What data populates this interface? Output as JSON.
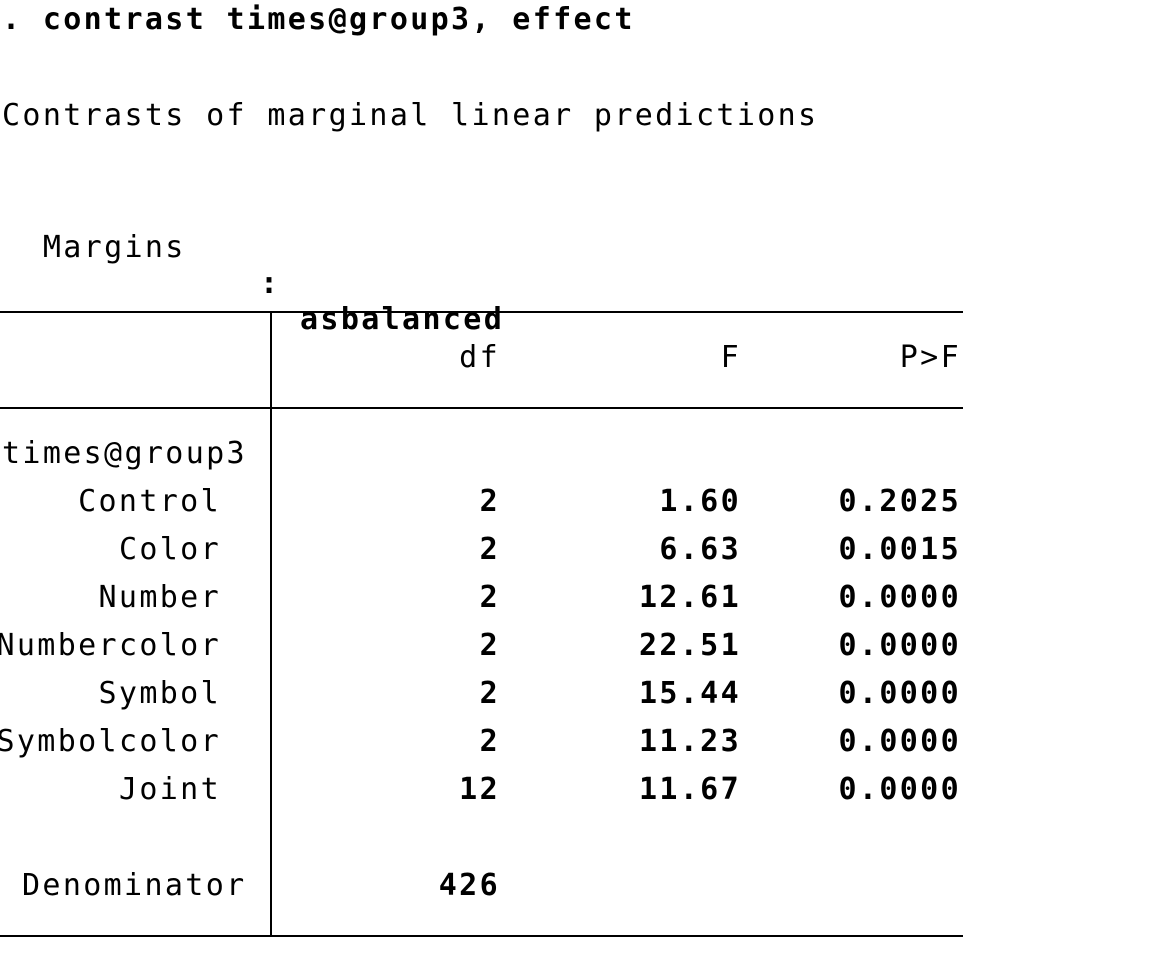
{
  "command": ". contrast times@group3, effect",
  "title": "Contrasts of marginal linear predictions",
  "margins": {
    "label": "Margins",
    "colon": ":",
    "value": "asbalanced"
  },
  "table": {
    "headers": {
      "df": "df",
      "F": "F",
      "p": "P>F"
    },
    "group_label": "times@group3",
    "rows": [
      {
        "label": "Control",
        "df": "2",
        "F": "1.60",
        "p": "0.2025"
      },
      {
        "label": "Color",
        "df": "2",
        "F": "6.63",
        "p": "0.0015"
      },
      {
        "label": "Number",
        "df": "2",
        "F": "12.61",
        "p": "0.0000"
      },
      {
        "label": "Numbercolor",
        "df": "2",
        "F": "22.51",
        "p": "0.0000"
      },
      {
        "label": "Symbol",
        "df": "2",
        "F": "15.44",
        "p": "0.0000"
      },
      {
        "label": "Symbolcolor",
        "df": "2",
        "F": "11.23",
        "p": "0.0000"
      },
      {
        "label": "Joint",
        "df": "12",
        "F": "11.67",
        "p": "0.0000"
      }
    ],
    "denominator": {
      "label": "Denominator",
      "df": "426"
    }
  }
}
